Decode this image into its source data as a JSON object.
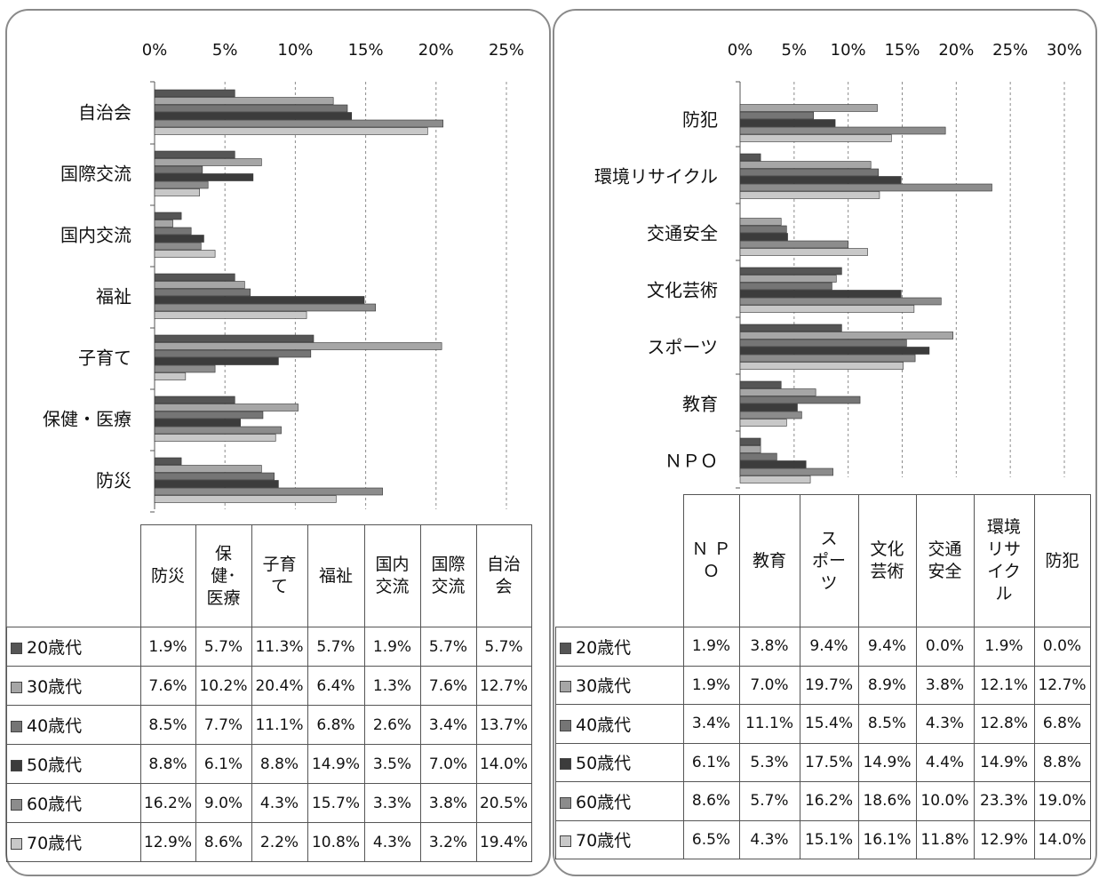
{
  "chart_data": [
    {
      "type": "bar",
      "orientation": "horizontal",
      "x_ticks": [
        "0%",
        "5%",
        "10%",
        "15%",
        "20%",
        "25%"
      ],
      "xlim": [
        0,
        25
      ],
      "grid": "vertical dashed",
      "categories": [
        "自治会",
        "国際交流",
        "国内交流",
        "福祉",
        "子育て",
        "保健・医療",
        "防災"
      ],
      "table_columns": [
        "防災",
        "保健・医療",
        "子育て",
        "福祉",
        "国内交流",
        "国際交流",
        "自治会"
      ],
      "series": [
        {
          "name": "■20歳代",
          "color": "#555555",
          "values": [
            5.7,
            5.7,
            1.9,
            5.7,
            11.3,
            5.7,
            1.9
          ]
        },
        {
          "name": "■30歳代",
          "color": "#a6a6a6",
          "values": [
            12.7,
            7.6,
            1.3,
            6.4,
            20.4,
            10.2,
            7.6
          ]
        },
        {
          "name": "■40歳代",
          "color": "#757575",
          "values": [
            13.7,
            3.4,
            2.6,
            6.8,
            11.1,
            7.7,
            8.5
          ]
        },
        {
          "name": "■50歳代",
          "color": "#3c3c3c",
          "values": [
            14.0,
            7.0,
            3.5,
            14.9,
            8.8,
            6.1,
            8.8
          ]
        },
        {
          "name": "■60歳代",
          "color": "#8c8c8c",
          "values": [
            20.5,
            3.8,
            3.3,
            15.7,
            4.3,
            9.0,
            16.2
          ]
        },
        {
          "name": "□70歳代",
          "color": "#c8c8c8",
          "values": [
            19.4,
            3.2,
            4.3,
            10.8,
            2.2,
            8.6,
            12.9
          ]
        }
      ],
      "table_rows": [
        [
          "1.9%",
          "5.7%",
          "11.3%",
          "5.7%",
          "1.9%",
          "5.7%",
          "5.7%"
        ],
        [
          "7.6%",
          "10.2%",
          "20.4%",
          "6.4%",
          "1.3%",
          "7.6%",
          "12.7%"
        ],
        [
          "8.5%",
          "7.7%",
          "11.1%",
          "6.8%",
          "2.6%",
          "3.4%",
          "13.7%"
        ],
        [
          "8.8%",
          "6.1%",
          "8.8%",
          "14.9%",
          "3.5%",
          "7.0%",
          "14.0%"
        ],
        [
          "16.2%",
          "9.0%",
          "4.3%",
          "15.7%",
          "3.3%",
          "3.8%",
          "20.5%"
        ],
        [
          "12.9%",
          "8.6%",
          "2.2%",
          "10.8%",
          "4.3%",
          "3.2%",
          "19.4%"
        ]
      ]
    },
    {
      "type": "bar",
      "orientation": "horizontal",
      "x_ticks": [
        "0%",
        "5%",
        "10%",
        "15%",
        "20%",
        "25%",
        "30%"
      ],
      "xlim": [
        0,
        30
      ],
      "grid": "vertical dashed",
      "categories": [
        "防犯",
        "環境リサイクル",
        "交通安全",
        "文化芸術",
        "スポーツ",
        "教育",
        "ＮＰＯ"
      ],
      "table_columns": [
        "ＮＰＯ",
        "教育",
        "スポーツ",
        "文化芸術",
        "交通安全",
        "環境リサイクル",
        "防犯"
      ],
      "series": [
        {
          "name": "■20歳代",
          "color": "#555555",
          "values": [
            0.0,
            1.9,
            0.0,
            9.4,
            9.4,
            3.8,
            1.9
          ]
        },
        {
          "name": "■30歳代",
          "color": "#a6a6a6",
          "values": [
            12.7,
            12.1,
            3.8,
            8.9,
            19.7,
            7.0,
            1.9
          ]
        },
        {
          "name": "■40歳代",
          "color": "#757575",
          "values": [
            6.8,
            12.8,
            4.3,
            8.5,
            15.4,
            11.1,
            3.4
          ]
        },
        {
          "name": "■50歳代",
          "color": "#3c3c3c",
          "values": [
            8.8,
            14.9,
            4.4,
            14.9,
            17.5,
            5.3,
            6.1
          ]
        },
        {
          "name": "■60歳代",
          "color": "#8c8c8c",
          "values": [
            19.0,
            23.3,
            10.0,
            18.6,
            16.2,
            5.7,
            8.6
          ]
        },
        {
          "name": "□70歳代",
          "color": "#c8c8c8",
          "values": [
            14.0,
            12.9,
            11.8,
            16.1,
            15.1,
            4.3,
            6.5
          ]
        }
      ],
      "table_rows": [
        [
          "1.9%",
          "3.8%",
          "9.4%",
          "9.4%",
          "0.0%",
          "1.9%",
          "0.0%"
        ],
        [
          "1.9%",
          "7.0%",
          "19.7%",
          "8.9%",
          "3.8%",
          "12.1%",
          "12.7%"
        ],
        [
          "3.4%",
          "11.1%",
          "15.4%",
          "8.5%",
          "4.3%",
          "12.8%",
          "6.8%"
        ],
        [
          "6.1%",
          "5.3%",
          "17.5%",
          "14.9%",
          "4.4%",
          "14.9%",
          "8.8%"
        ],
        [
          "8.6%",
          "5.7%",
          "16.2%",
          "18.6%",
          "10.0%",
          "23.3%",
          "19.0%"
        ],
        [
          "6.5%",
          "4.3%",
          "15.1%",
          "16.1%",
          "11.8%",
          "12.9%",
          "14.0%"
        ]
      ]
    }
  ]
}
